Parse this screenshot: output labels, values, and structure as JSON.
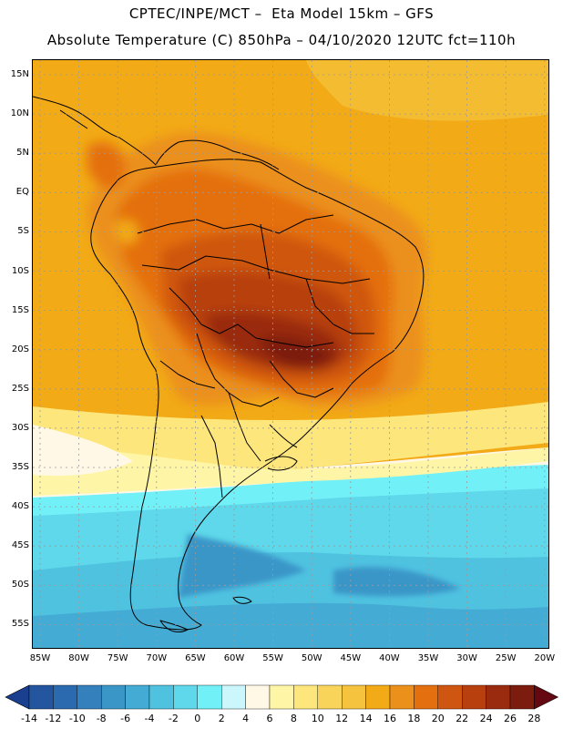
{
  "header": {
    "line1": "CPTEC/INPE/MCT –  Eta Model 15km – GFS",
    "line2": "Absolute Temperature (C) 850hPa – 04/10/2020 12UTC fct=110h"
  },
  "axes": {
    "lat_ticks": [
      "15N",
      "10N",
      "5N",
      "EQ",
      "5S",
      "10S",
      "15S",
      "20S",
      "25S",
      "30S",
      "35S",
      "40S",
      "45S",
      "50S",
      "55S"
    ],
    "lon_ticks": [
      "85W",
      "80W",
      "75W",
      "70W",
      "65W",
      "60W",
      "55W",
      "50W",
      "45W",
      "40W",
      "35W",
      "30W",
      "25W",
      "20W"
    ]
  },
  "legend": {
    "levels": [
      "-14",
      "-12",
      "-10",
      "-8",
      "-6",
      "-4",
      "-2",
      "0",
      "2",
      "4",
      "6",
      "8",
      "10",
      "12",
      "14",
      "16",
      "18",
      "20",
      "22",
      "24",
      "26",
      "28"
    ],
    "colors": [
      "#1b3f8f",
      "#24559f",
      "#2b6aae",
      "#3480bd",
      "#3b96c8",
      "#44abd4",
      "#4fc2e0",
      "#5ed8ea",
      "#72f0f7",
      "#cbf6fb",
      "#fff8e6",
      "#fff5a6",
      "#fde77d",
      "#f9d45b",
      "#f5c33d",
      "#f2aa16",
      "#eb901a",
      "#e46f0e",
      "#cf5610",
      "#b8400f",
      "#9a2b0f",
      "#7c1c0e",
      "#650812"
    ]
  }
}
